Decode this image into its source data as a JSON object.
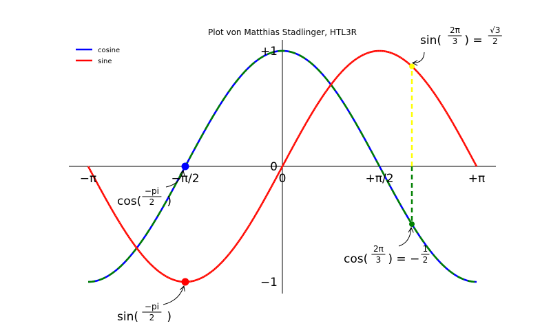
{
  "chart_data": {
    "type": "line",
    "title": "Plot von Matthias Stadlinger, HTL3R",
    "xlabel": "",
    "ylabel": "",
    "xlim": [
      -3.1416,
      3.1416
    ],
    "ylim": [
      -1.1,
      1.1
    ],
    "x_ticks": [
      {
        "value": -3.1416,
        "label": "−π"
      },
      {
        "value": -1.5708,
        "label": "−π/2"
      },
      {
        "value": 0,
        "label": "0"
      },
      {
        "value": 1.5708,
        "label": "+π/2"
      },
      {
        "value": 3.1416,
        "label": "+π"
      }
    ],
    "y_ticks": [
      {
        "value": -1,
        "label": "−1"
      },
      {
        "value": 0,
        "label": "0"
      },
      {
        "value": 1,
        "label": "+1"
      }
    ],
    "legend": {
      "placement": "upper-left",
      "entries": [
        {
          "name": "cosine",
          "color": "#0000ff"
        },
        {
          "name": "sine",
          "color": "#ff0000"
        }
      ]
    },
    "series": [
      {
        "name": "cosine",
        "function": "cos",
        "color": "#0000ff",
        "overlay_color": "#008000",
        "overlay_style": "dashed"
      },
      {
        "name": "sine",
        "function": "sin",
        "color": "#ff0000"
      }
    ],
    "markers": [
      {
        "name": "cos-minus-pi-half",
        "x": -1.5708,
        "y": 0,
        "color": "#0000ff"
      },
      {
        "name": "sin-minus-pi-half",
        "x": -1.5708,
        "y": -1,
        "color": "#ff0000"
      },
      {
        "name": "sin-two-pi-third",
        "x": 2.0944,
        "y": 0.866,
        "color": "#ffff00"
      },
      {
        "name": "cos-two-pi-third",
        "x": 2.0944,
        "y": -0.5,
        "color": "#008000"
      }
    ],
    "guides": [
      {
        "name": "sin-guide",
        "x": 2.0944,
        "y_from": 0,
        "y_to": 0.866,
        "color": "#ffff00",
        "style": "dashed"
      },
      {
        "name": "cos-guide",
        "x": 2.0944,
        "y_from": 0,
        "y_to": -0.5,
        "color": "#008000",
        "style": "dashed"
      }
    ],
    "annotations": [
      {
        "name": "cos-minus-pi-half-label",
        "text_main": "cos(",
        "num": "−pi",
        "den": "2",
        "tail": ")",
        "x": -1.5708,
        "y": 0
      },
      {
        "name": "sin-minus-pi-half-label",
        "text_main": "sin(",
        "num": "−pi",
        "den": "2",
        "tail": ")",
        "x": -1.5708,
        "y": -1
      },
      {
        "name": "sin-two-pi-third-label",
        "text_main": "sin(",
        "num": "2π",
        "den": "3",
        "tail": ") = ",
        "rhs_num": "√3",
        "rhs_den": "2",
        "x": 2.0944,
        "y": 0.866
      },
      {
        "name": "cos-two-pi-third-label",
        "text_main": "cos(",
        "num": "2π",
        "den": "3",
        "tail": ") = −",
        "rhs_num": "1",
        "rhs_den": "2",
        "x": 2.0944,
        "y": -0.5
      }
    ]
  }
}
